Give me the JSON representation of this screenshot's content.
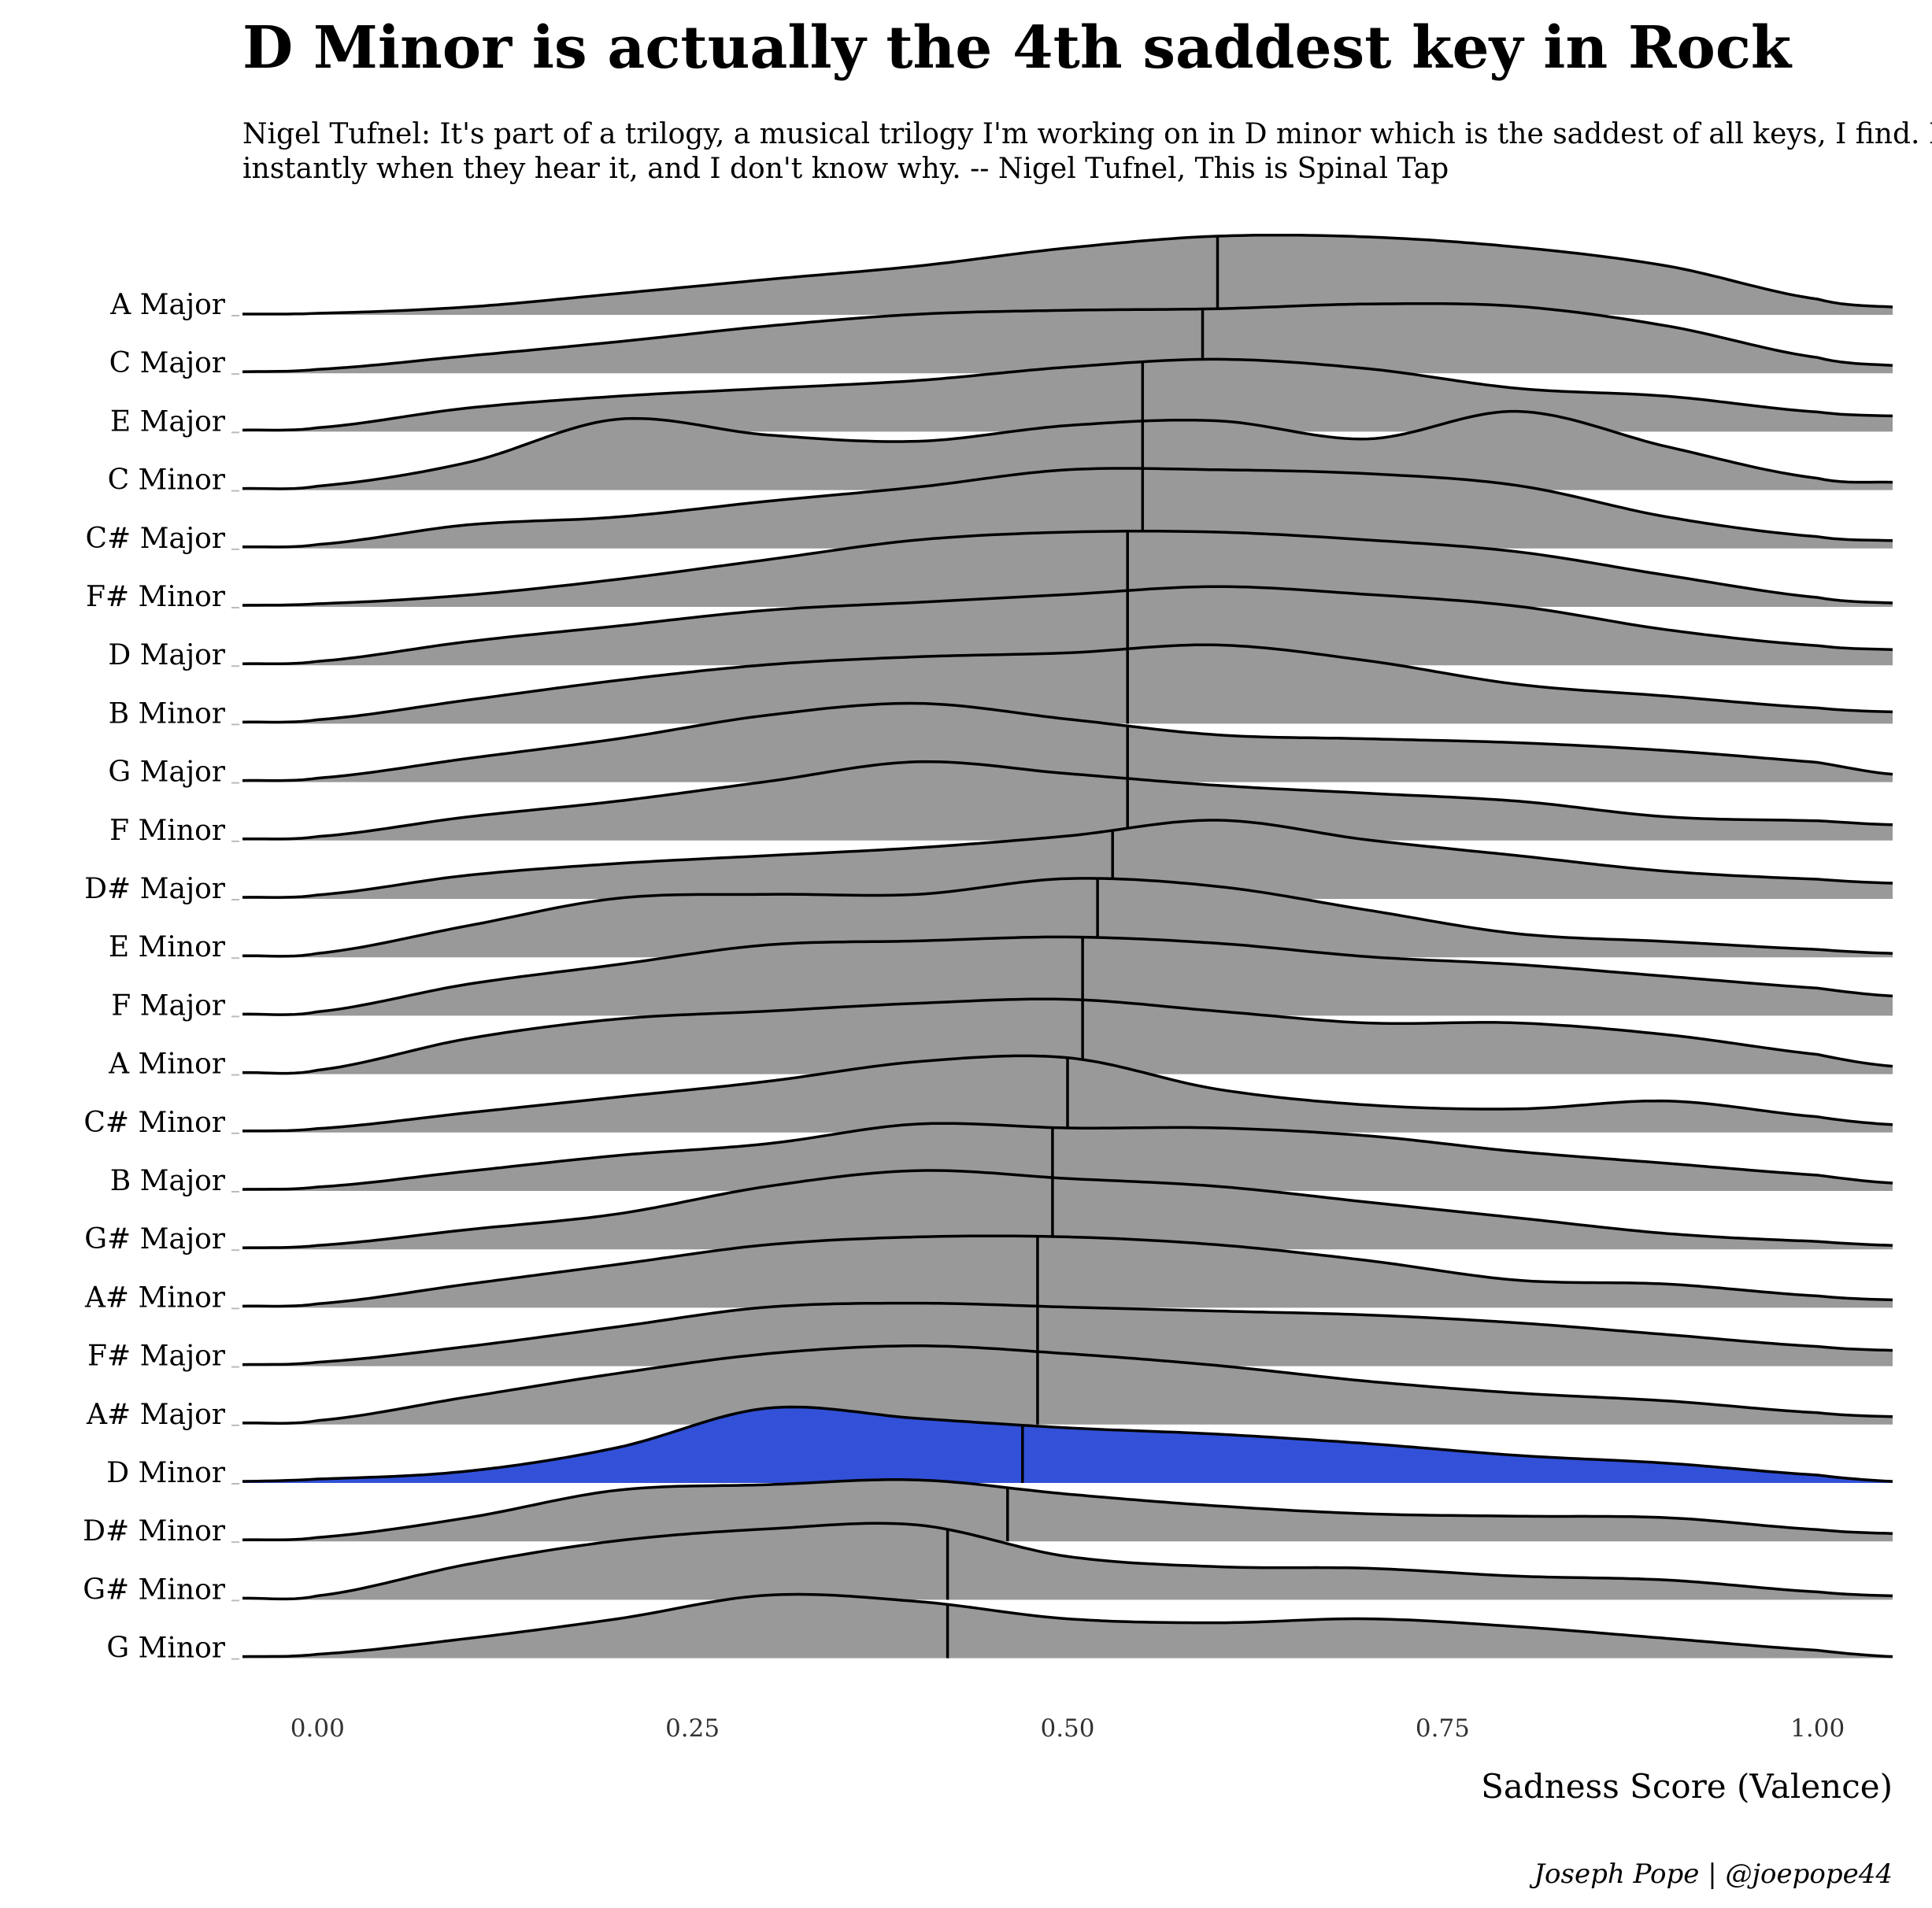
{
  "chart_data": {
    "type": "ridgeline",
    "title": "D Minor is actually the 4th saddest key in Rock",
    "subtitle_lines": [
      "Nigel Tufnel: It's part of a trilogy, a musical trilogy I'm working on in D minor which is the saddest of all keys, I find. People weep",
      "instantly when they hear it, and I don't know why.  -- Nigel Tufnel, This is Spinal Tap"
    ],
    "xlabel": "Sadness Score (Valence)",
    "caption": "Joseph Pope  |  @joepope44",
    "xlim": [
      -0.05,
      1.05
    ],
    "xticks": [
      0.0,
      0.25,
      0.5,
      0.75,
      1.0
    ],
    "xtick_labels": [
      "0.00",
      "0.25",
      "0.50",
      "0.75",
      "1.00"
    ],
    "default_fill": "#999999",
    "highlight_fill": "#3251d8",
    "highlight": "D Minor",
    "density_x": [
      -0.05,
      0.0,
      0.1,
      0.2,
      0.3,
      0.4,
      0.5,
      0.6,
      0.7,
      0.8,
      0.9,
      1.0,
      1.05
    ],
    "series": [
      {
        "name": "A Major",
        "median": 0.6,
        "density": [
          0.01,
          0.02,
          0.1,
          0.27,
          0.45,
          0.62,
          0.85,
          1.0,
          0.99,
          0.86,
          0.62,
          0.2,
          0.1
        ]
      },
      {
        "name": "C Major",
        "median": 0.59,
        "density": [
          0.02,
          0.05,
          0.22,
          0.4,
          0.6,
          0.75,
          0.8,
          0.82,
          0.88,
          0.85,
          0.6,
          0.2,
          0.1
        ]
      },
      {
        "name": "E Major",
        "median": 0.55,
        "density": [
          0.02,
          0.05,
          0.3,
          0.45,
          0.55,
          0.65,
          0.82,
          0.92,
          0.8,
          0.55,
          0.45,
          0.25,
          0.2
        ]
      },
      {
        "name": "C Minor",
        "median": 0.55,
        "density": [
          0.02,
          0.05,
          0.35,
          0.9,
          0.7,
          0.62,
          0.82,
          0.88,
          0.65,
          1.0,
          0.55,
          0.15,
          0.1
        ]
      },
      {
        "name": "C# Major",
        "median": 0.55,
        "density": [
          0.02,
          0.05,
          0.3,
          0.4,
          0.6,
          0.78,
          1.0,
          1.0,
          0.95,
          0.8,
          0.4,
          0.15,
          0.1
        ]
      },
      {
        "name": "F# Minor",
        "median": 0.54,
        "density": [
          0.02,
          0.04,
          0.15,
          0.35,
          0.6,
          0.85,
          0.95,
          0.95,
          0.85,
          0.7,
          0.4,
          0.12,
          0.05
        ]
      },
      {
        "name": "D Major",
        "median": 0.54,
        "density": [
          0.02,
          0.05,
          0.3,
          0.5,
          0.7,
          0.8,
          0.9,
          1.0,
          0.9,
          0.75,
          0.45,
          0.25,
          0.2
        ]
      },
      {
        "name": "B Minor",
        "median": 0.54,
        "density": [
          0.02,
          0.05,
          0.3,
          0.55,
          0.75,
          0.85,
          0.9,
          1.0,
          0.8,
          0.5,
          0.35,
          0.2,
          0.15
        ]
      },
      {
        "name": "G Major",
        "median": 0.54,
        "density": [
          0.02,
          0.05,
          0.3,
          0.55,
          0.85,
          1.0,
          0.8,
          0.6,
          0.55,
          0.5,
          0.4,
          0.25,
          0.1
        ]
      },
      {
        "name": "F Minor",
        "median": 0.54,
        "density": [
          0.02,
          0.05,
          0.3,
          0.5,
          0.75,
          1.0,
          0.85,
          0.7,
          0.6,
          0.5,
          0.3,
          0.25,
          0.2
        ]
      },
      {
        "name": "D# Major",
        "median": 0.53,
        "density": [
          0.02,
          0.05,
          0.3,
          0.45,
          0.55,
          0.65,
          0.8,
          1.0,
          0.75,
          0.55,
          0.35,
          0.25,
          0.2
        ]
      },
      {
        "name": "E Minor",
        "median": 0.52,
        "density": [
          0.02,
          0.05,
          0.4,
          0.75,
          0.8,
          0.8,
          1.0,
          0.9,
          0.6,
          0.3,
          0.2,
          0.1,
          0.05
        ]
      },
      {
        "name": "F Major",
        "median": 0.51,
        "density": [
          0.02,
          0.05,
          0.4,
          0.65,
          0.9,
          0.95,
          1.0,
          0.92,
          0.75,
          0.65,
          0.5,
          0.35,
          0.25
        ]
      },
      {
        "name": "A Minor",
        "median": 0.51,
        "density": [
          0.02,
          0.05,
          0.45,
          0.7,
          0.8,
          0.9,
          0.95,
          0.8,
          0.65,
          0.65,
          0.5,
          0.25,
          0.1
        ]
      },
      {
        "name": "C# Minor",
        "median": 0.5,
        "density": [
          0.02,
          0.05,
          0.25,
          0.45,
          0.65,
          0.9,
          0.95,
          0.55,
          0.35,
          0.3,
          0.4,
          0.2,
          0.1
        ]
      },
      {
        "name": "B Major",
        "median": 0.49,
        "density": [
          0.02,
          0.05,
          0.25,
          0.45,
          0.6,
          0.85,
          0.8,
          0.8,
          0.7,
          0.5,
          0.35,
          0.2,
          0.1
        ]
      },
      {
        "name": "G# Major",
        "median": 0.49,
        "density": [
          0.02,
          0.05,
          0.25,
          0.45,
          0.8,
          1.0,
          0.9,
          0.8,
          0.6,
          0.4,
          0.2,
          0.1,
          0.05
        ]
      },
      {
        "name": "A# Minor",
        "median": 0.48,
        "density": [
          0.02,
          0.05,
          0.3,
          0.55,
          0.8,
          0.9,
          0.9,
          0.8,
          0.6,
          0.35,
          0.3,
          0.15,
          0.1
        ]
      },
      {
        "name": "F# Major",
        "median": 0.48,
        "density": [
          0.02,
          0.05,
          0.25,
          0.5,
          0.75,
          0.8,
          0.75,
          0.7,
          0.65,
          0.55,
          0.4,
          0.25,
          0.2
        ]
      },
      {
        "name": "A# Major",
        "median": 0.48,
        "density": [
          0.02,
          0.05,
          0.35,
          0.65,
          0.9,
          1.0,
          0.9,
          0.75,
          0.55,
          0.4,
          0.3,
          0.15,
          0.1
        ]
      },
      {
        "name": "D Minor",
        "median": 0.47,
        "density": [
          0.02,
          0.05,
          0.15,
          0.45,
          0.95,
          0.82,
          0.7,
          0.62,
          0.5,
          0.35,
          0.25,
          0.1,
          0.02
        ]
      },
      {
        "name": "D# Minor",
        "median": 0.46,
        "density": [
          0.02,
          0.05,
          0.3,
          0.65,
          0.72,
          0.78,
          0.6,
          0.45,
          0.35,
          0.32,
          0.3,
          0.15,
          0.1
        ]
      },
      {
        "name": "G# Minor",
        "median": 0.42,
        "density": [
          0.02,
          0.05,
          0.45,
          0.75,
          0.9,
          0.95,
          0.55,
          0.42,
          0.4,
          0.3,
          0.25,
          0.1,
          0.05
        ]
      },
      {
        "name": "G Minor",
        "median": 0.42,
        "density": [
          0.02,
          0.05,
          0.25,
          0.5,
          0.8,
          0.72,
          0.5,
          0.45,
          0.5,
          0.4,
          0.25,
          0.1,
          0.02
        ]
      }
    ]
  }
}
